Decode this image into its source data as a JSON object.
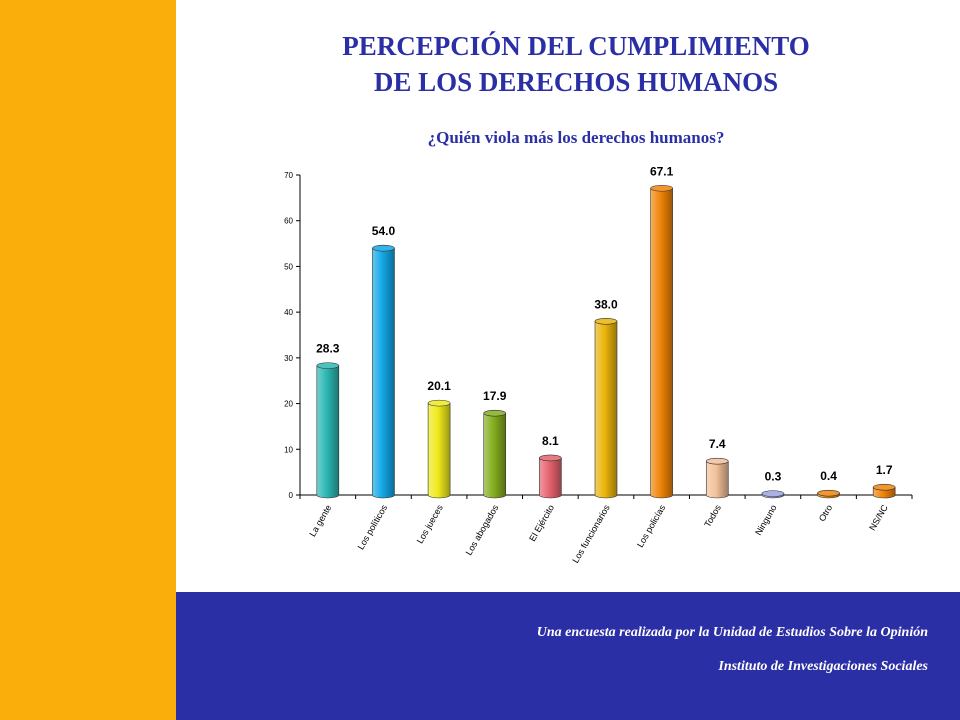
{
  "slide": {
    "title_line1": "PERCEPCIÓN DEL CUMPLIMIENTO",
    "title_line2": "DE LOS DERECHOS HUMANOS",
    "subtitle": "¿Quién viola más los derechos humanos?",
    "footer_line1": "Una encuesta realizada por la Unidad de Estudios Sobre la Opinión",
    "footer_line2": "Instituto de Investigaciones Sociales"
  },
  "colors": {
    "sidebar": "#F9AE0C",
    "footer": "#2B2FA6",
    "title": "#2B2FA6"
  },
  "chart_data": {
    "type": "bar",
    "title": "¿Quién viola más los derechos humanos?",
    "xlabel": "",
    "ylabel": "",
    "ylim": [
      0,
      70
    ],
    "yticks": [
      0,
      10,
      20,
      30,
      40,
      50,
      60,
      70
    ],
    "grid": false,
    "categories": [
      "La gente",
      "Los políticos",
      "Los jueces",
      "Los abogados",
      "El Ejército",
      "Los funcionarios",
      "Los policías",
      "Todos",
      "Ninguno",
      "Otro",
      "NS/NC"
    ],
    "values": [
      28.3,
      54.0,
      20.1,
      17.9,
      8.1,
      38.0,
      67.1,
      7.4,
      0.3,
      0.4,
      1.7
    ],
    "value_labels": [
      "28.3",
      "54.0",
      "20.1",
      "17.9",
      "8.1",
      "38.0",
      "67.1",
      "7.4",
      "0.3",
      "0.4",
      "1.7"
    ],
    "bar_colors": [
      "#2BB7B3",
      "#12A7E6",
      "#EFEA1C",
      "#84AD1E",
      "#E5636E",
      "#EAB40A",
      "#F08408",
      "#F2C09A",
      "#9AA3E0",
      "#F08408",
      "#F08408"
    ]
  }
}
